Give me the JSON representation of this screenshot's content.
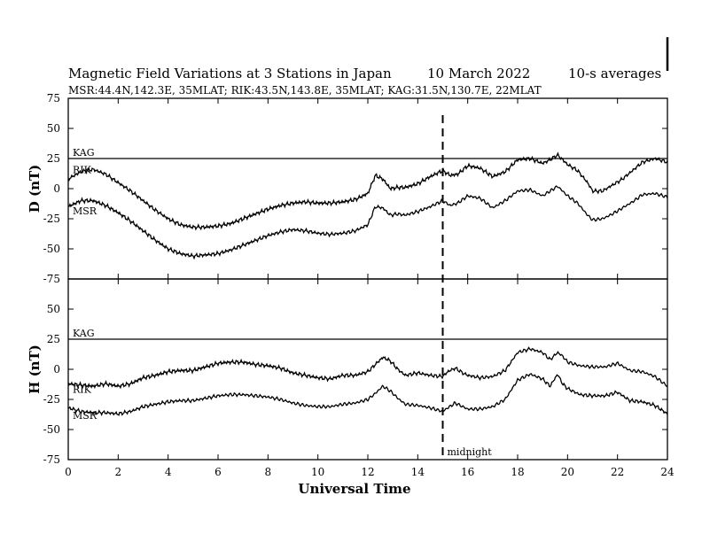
{
  "figure": {
    "title": "Magnetic Field Variations at 3 Stations in Japan",
    "date": "10 March   2022",
    "averaging": "10-s averages",
    "stations_line": "MSR:44.4N,142.3E, 35MLAT;  RIK:43.5N,143.8E, 35MLAT;  KAG:31.5N,130.7E, 22MLAT"
  },
  "chart_data": [
    {
      "type": "line",
      "panel": "D",
      "ylabel": "D (nT)",
      "ylim": [
        -75,
        75
      ],
      "yticks": [
        -75,
        -50,
        -25,
        0,
        25,
        50,
        75
      ],
      "xlim": [
        0,
        24
      ],
      "xticks": [
        0,
        2,
        4,
        6,
        8,
        10,
        12,
        14,
        16,
        18,
        20,
        22,
        24
      ],
      "series": [
        {
          "name": "KAG",
          "x": [
            0,
            2,
            4,
            6,
            8,
            10,
            12,
            14,
            16,
            18,
            20,
            22,
            24
          ],
          "y": [
            25,
            25,
            25,
            25,
            25,
            25,
            25,
            25,
            25,
            25,
            25,
            25,
            25
          ]
        },
        {
          "name": "RIK",
          "x": [
            0,
            0.5,
            1.0,
            1.5,
            2.0,
            2.5,
            3.0,
            3.5,
            4.0,
            4.5,
            5.0,
            5.5,
            6.0,
            6.5,
            7.0,
            7.5,
            8.0,
            8.5,
            9.0,
            9.5,
            10.0,
            10.5,
            11.0,
            11.5,
            12.0,
            12.3,
            12.6,
            12.9,
            13.2,
            13.5,
            14.0,
            14.5,
            15.0,
            15.3,
            15.6,
            16.0,
            16.5,
            17.0,
            17.5,
            18.0,
            18.5,
            19.0,
            19.3,
            19.6,
            19.8,
            20.0,
            20.4,
            20.8,
            21.0,
            21.4,
            21.8,
            22.2,
            22.6,
            23.0,
            23.5,
            24.0
          ],
          "y": [
            8,
            14,
            16,
            12,
            5,
            -2,
            -10,
            -18,
            -25,
            -30,
            -32,
            -32,
            -31,
            -29,
            -25,
            -21,
            -17,
            -14,
            -12,
            -11,
            -12,
            -12,
            -11,
            -9,
            -4,
            11,
            8,
            0,
            1,
            1,
            4,
            10,
            15,
            11,
            12,
            19,
            17,
            10,
            14,
            24,
            25,
            21,
            24,
            28,
            24,
            20,
            15,
            5,
            -2,
            -2,
            3,
            8,
            15,
            22,
            25,
            22
          ]
        },
        {
          "name": "MSR",
          "x": [
            0,
            0.5,
            1.0,
            1.5,
            2.0,
            2.5,
            3.0,
            3.5,
            4.0,
            4.5,
            5.0,
            5.5,
            6.0,
            6.5,
            7.0,
            7.5,
            8.0,
            8.5,
            9.0,
            9.5,
            10.0,
            10.5,
            11.0,
            11.5,
            12.0,
            12.3,
            12.6,
            12.9,
            13.2,
            13.5,
            14.0,
            14.5,
            15.0,
            15.3,
            15.6,
            16.0,
            16.5,
            17.0,
            17.5,
            18.0,
            18.5,
            19.0,
            19.3,
            19.6,
            19.8,
            20.0,
            20.4,
            20.8,
            21.0,
            21.4,
            21.8,
            22.2,
            22.6,
            23.0,
            23.5,
            24.0
          ],
          "y": [
            -15,
            -10,
            -10,
            -14,
            -20,
            -27,
            -35,
            -43,
            -50,
            -54,
            -56,
            -55,
            -54,
            -51,
            -47,
            -43,
            -39,
            -36,
            -34,
            -35,
            -37,
            -38,
            -37,
            -35,
            -30,
            -15,
            -16,
            -22,
            -21,
            -22,
            -19,
            -15,
            -10,
            -14,
            -12,
            -6,
            -8,
            -16,
            -10,
            -2,
            -1,
            -6,
            -2,
            2,
            -2,
            -6,
            -12,
            -22,
            -26,
            -25,
            -21,
            -16,
            -11,
            -5,
            -4,
            -7
          ]
        }
      ]
    },
    {
      "type": "line",
      "panel": "H",
      "ylabel": "H (nT)",
      "xlabel": "Universal Time",
      "ylim": [
        -75,
        75
      ],
      "yticks": [
        -75,
        -50,
        -25,
        0,
        25,
        50,
        75
      ],
      "xlim": [
        0,
        24
      ],
      "xticks": [
        0,
        2,
        4,
        6,
        8,
        10,
        12,
        14,
        16,
        18,
        20,
        22,
        24
      ],
      "series": [
        {
          "name": "KAG",
          "x": [
            0,
            2,
            4,
            6,
            8,
            10,
            12,
            14,
            16,
            18,
            20,
            22,
            24
          ],
          "y": [
            25,
            25,
            25,
            25,
            25,
            25,
            25,
            25,
            25,
            25,
            25,
            25,
            25
          ]
        },
        {
          "name": "RIK",
          "x": [
            0,
            0.5,
            1.0,
            1.5,
            2.0,
            2.5,
            3.0,
            3.5,
            4.0,
            4.5,
            5.0,
            5.5,
            6.0,
            6.5,
            7.0,
            7.5,
            8.0,
            8.5,
            9.0,
            9.5,
            10.0,
            10.5,
            11.0,
            11.5,
            12.0,
            12.3,
            12.6,
            12.9,
            13.2,
            13.5,
            14.0,
            14.5,
            15.0,
            15.2,
            15.5,
            15.8,
            16.0,
            16.5,
            17.0,
            17.5,
            18.0,
            18.5,
            19.0,
            19.3,
            19.6,
            19.8,
            20.0,
            20.5,
            21.0,
            21.5,
            22.0,
            22.5,
            23.0,
            23.5,
            24.0
          ],
          "y": [
            -12,
            -13,
            -14,
            -12,
            -14,
            -12,
            -7,
            -5,
            -2,
            -1,
            -1,
            2,
            5,
            6,
            6,
            4,
            3,
            1,
            -3,
            -5,
            -7,
            -8,
            -5,
            -5,
            -2,
            4,
            10,
            7,
            0,
            -5,
            -3,
            -5,
            -6,
            -2,
            1,
            -3,
            -5,
            -7,
            -6,
            -1,
            14,
            17,
            14,
            8,
            14,
            11,
            6,
            3,
            2,
            2,
            5,
            -1,
            -2,
            -6,
            -14
          ]
        },
        {
          "name": "MSR",
          "x": [
            0,
            0.5,
            1.0,
            1.5,
            2.0,
            2.5,
            3.0,
            3.5,
            4.0,
            4.5,
            5.0,
            5.5,
            6.0,
            6.5,
            7.0,
            7.5,
            8.0,
            8.5,
            9.0,
            9.5,
            10.0,
            10.5,
            11.0,
            11.5,
            12.0,
            12.3,
            12.6,
            12.9,
            13.2,
            13.5,
            14.0,
            14.5,
            15.0,
            15.2,
            15.5,
            15.8,
            16.0,
            16.5,
            17.0,
            17.5,
            18.0,
            18.5,
            19.0,
            19.3,
            19.6,
            19.8,
            20.0,
            20.5,
            21.0,
            21.5,
            22.0,
            22.5,
            23.0,
            23.5,
            24.0
          ],
          "y": [
            -32,
            -35,
            -36,
            -36,
            -37,
            -35,
            -31,
            -29,
            -27,
            -26,
            -26,
            -24,
            -22,
            -21,
            -21,
            -22,
            -23,
            -25,
            -28,
            -30,
            -31,
            -31,
            -29,
            -28,
            -25,
            -20,
            -14,
            -18,
            -24,
            -29,
            -30,
            -32,
            -35,
            -32,
            -28,
            -31,
            -33,
            -33,
            -31,
            -25,
            -9,
            -4,
            -8,
            -14,
            -4,
            -12,
            -16,
            -21,
            -22,
            -22,
            -19,
            -26,
            -27,
            -30,
            -37
          ]
        }
      ]
    }
  ],
  "annotations": {
    "midnight_ut": 15,
    "midnight_label": "midnight"
  }
}
